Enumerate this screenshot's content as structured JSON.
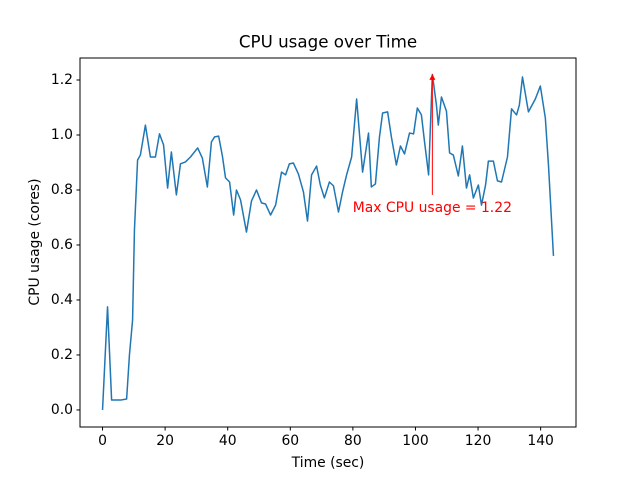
{
  "chart_data": {
    "type": "line",
    "title": "CPU usage over Time",
    "xlabel": "Time (sec)",
    "ylabel": "CPU usage (cores)",
    "xlim": [
      -7.2,
      151.3
    ],
    "ylim": [
      -0.062,
      1.28
    ],
    "xticks": [
      0,
      20,
      40,
      60,
      80,
      100,
      120,
      140
    ],
    "yticks": [
      {
        "value": 0,
        "label": "0.0"
      },
      0.2,
      0.4,
      0.6,
      0.8,
      {
        "value": 1,
        "label": "1.0"
      },
      1.2
    ],
    "grid": false,
    "series": [
      {
        "name": "CPU usage",
        "color": "#1f77b4",
        "x": [
          0,
          1.6,
          2.9,
          5.8,
          7.7,
          8.6,
          9.6,
          10.2,
          11.2,
          12.1,
          13.7,
          15.3,
          16.9,
          18.2,
          19.5,
          20.8,
          22.0,
          23.6,
          24.9,
          26.5,
          28.1,
          30.4,
          31.9,
          33.5,
          34.8,
          35.8,
          37.1,
          38.3,
          39.3,
          40.6,
          41.9,
          42.8,
          44.1,
          46.0,
          47.6,
          49.2,
          50.8,
          52.1,
          53.7,
          55.3,
          57.2,
          58.5,
          59.7,
          61.0,
          62.6,
          64.2,
          65.5,
          66.8,
          68.4,
          69.6,
          70.9,
          72.5,
          73.8,
          75.4,
          76.7,
          78.0,
          79.6,
          81.2,
          83.1,
          85.0,
          85.9,
          87.2,
          88.5,
          89.5,
          91.1,
          92.3,
          93.9,
          95.2,
          96.5,
          98.1,
          99.4,
          100.6,
          101.9,
          102.9,
          104.2,
          105.4,
          106.7,
          107.3,
          108.3,
          109.9,
          110.9,
          112.1,
          113.7,
          115.0,
          116.3,
          117.3,
          118.5,
          120.1,
          121.1,
          122.4,
          123.3,
          124.9,
          126.2,
          127.5,
          129.4,
          130.7,
          132.3,
          133.2,
          134.2,
          136.1,
          138.3,
          139.9,
          141.5,
          142.5,
          144.1
        ],
        "values": [
          0,
          0.375,
          0.036,
          0.036,
          0.04,
          0.2,
          0.327,
          0.655,
          0.909,
          0.927,
          1.036,
          0.92,
          0.92,
          1.004,
          0.964,
          0.807,
          0.938,
          0.782,
          0.895,
          0.902,
          0.92,
          0.953,
          0.916,
          0.811,
          0.975,
          0.993,
          0.996,
          0.924,
          0.844,
          0.829,
          0.709,
          0.8,
          0.764,
          0.647,
          0.76,
          0.8,
          0.753,
          0.749,
          0.709,
          0.745,
          0.865,
          0.855,
          0.895,
          0.898,
          0.858,
          0.793,
          0.687,
          0.855,
          0.887,
          0.818,
          0.771,
          0.829,
          0.815,
          0.72,
          0.793,
          0.855,
          0.92,
          1.131,
          0.865,
          1.007,
          0.811,
          0.822,
          0.993,
          1.08,
          1.084,
          0.993,
          0.891,
          0.96,
          0.931,
          1.007,
          1.004,
          1.098,
          1.073,
          0.975,
          0.855,
          1.22,
          1.109,
          1.036,
          1.138,
          1.087,
          0.935,
          0.927,
          0.851,
          0.96,
          0.807,
          0.855,
          0.771,
          0.818,
          0.745,
          0.818,
          0.905,
          0.905,
          0.833,
          0.829,
          0.92,
          1.095,
          1.073,
          1.109,
          1.211,
          1.084,
          1.131,
          1.178,
          1.062,
          0.891,
          0.56
        ]
      }
    ],
    "annotation": {
      "text": "Max CPU usage = 1.22",
      "x": 105.4,
      "y": 1.22,
      "xytext": [
        105.4,
        0.735
      ],
      "color": "red"
    }
  }
}
